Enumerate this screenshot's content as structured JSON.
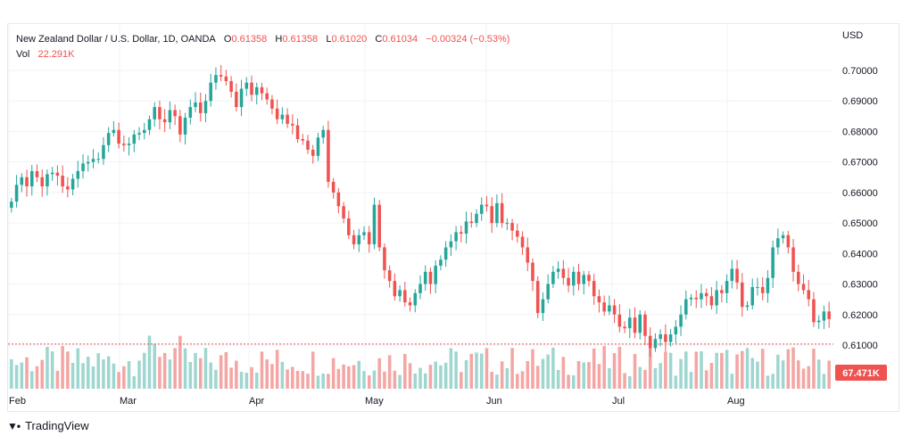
{
  "legend": {
    "symbol": "New Zealand Dollar / U.S. Dollar, 1D, OANDA",
    "o_label": "O",
    "o_value": "0.61358",
    "h_label": "H",
    "h_value": "0.61358",
    "l_label": "L",
    "l_value": "0.61020",
    "c_label": "C",
    "c_value": "0.61034",
    "change": "−0.00324 (−0.53%)",
    "vol_label": "Vol",
    "vol_value": "22.291K"
  },
  "currency": "USD",
  "branding": {
    "name": "TradingView",
    "logo_icon": "tradingview-logo-icon"
  },
  "colors": {
    "up": "#26a69a",
    "down": "#ef5350",
    "up_volume": "#9fd6d0",
    "down_volume": "#f3a6a4",
    "grid": "#f0f3fa",
    "text": "#131722"
  },
  "chart_data": {
    "type": "candlestick",
    "price_axis": {
      "ticks": [
        "0.70000",
        "0.69000",
        "0.68000",
        "0.67000",
        "0.66000",
        "0.65000",
        "0.64000",
        "0.63000",
        "0.62000",
        "0.61000"
      ],
      "ylim": [
        0.6035,
        0.7075
      ]
    },
    "time_axis": {
      "labels": [
        "Feb",
        "Mar",
        "Apr",
        "May",
        "Jun",
        "Jul",
        "Aug"
      ]
    },
    "current_price": 0.61034,
    "volume_label": "67.471K",
    "grid": true,
    "close": [
      0.657,
      0.6625,
      0.665,
      0.662,
      0.667,
      0.665,
      0.662,
      0.666,
      0.6665,
      0.6655,
      0.662,
      0.661,
      0.6645,
      0.667,
      0.6695,
      0.67,
      0.671,
      0.671,
      0.6755,
      0.6795,
      0.6805,
      0.676,
      0.6755,
      0.676,
      0.679,
      0.6795,
      0.6805,
      0.684,
      0.688,
      0.684,
      0.683,
      0.687,
      0.685,
      0.679,
      0.6845,
      0.688,
      0.6895,
      0.686,
      0.69,
      0.696,
      0.6985,
      0.698,
      0.6965,
      0.693,
      0.688,
      0.694,
      0.696,
      0.692,
      0.6945,
      0.6925,
      0.6905,
      0.6875,
      0.684,
      0.6855,
      0.6825,
      0.682,
      0.6775,
      0.677,
      0.674,
      0.672,
      0.678,
      0.6805,
      0.6635,
      0.66,
      0.6555,
      0.6515,
      0.646,
      0.643,
      0.646,
      0.647,
      0.643,
      0.656,
      0.642,
      0.6345,
      0.631,
      0.626,
      0.628,
      0.624,
      0.623,
      0.627,
      0.63,
      0.634,
      0.63,
      0.636,
      0.638,
      0.642,
      0.644,
      0.647,
      0.6465,
      0.6505,
      0.65,
      0.653,
      0.656,
      0.6555,
      0.65,
      0.6565,
      0.65,
      0.65,
      0.6475,
      0.6455,
      0.642,
      0.637,
      0.631,
      0.6205,
      0.625,
      0.63,
      0.634,
      0.635,
      0.632,
      0.6295,
      0.634,
      0.63,
      0.633,
      0.631,
      0.626,
      0.624,
      0.621,
      0.623,
      0.62,
      0.616,
      0.6155,
      0.619,
      0.614,
      0.62,
      0.613,
      0.609,
      0.612,
      0.6135,
      0.611,
      0.6135,
      0.616,
      0.62,
      0.625,
      0.6255,
      0.625,
      0.627,
      0.626,
      0.623,
      0.628,
      0.627,
      0.631,
      0.635,
      0.6305,
      0.6225,
      0.623,
      0.629,
      0.629,
      0.627,
      0.632,
      0.642,
      0.645,
      0.646,
      0.642,
      0.634,
      0.63,
      0.628,
      0.625,
      0.6175,
      0.618,
      0.621,
      0.6185
    ]
  }
}
